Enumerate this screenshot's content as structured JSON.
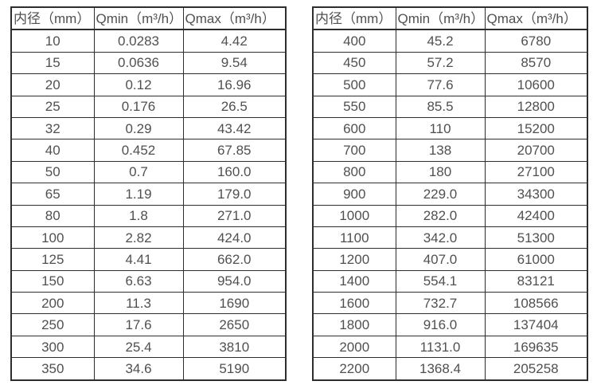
{
  "page": {
    "background_color": "#ffffff",
    "border_color": "#2e2e2e",
    "text_color": "#505050"
  },
  "tables": [
    {
      "name": "flow-table-small-diameters",
      "headers": [
        "内径（mm）",
        "Qmin（m³/h）",
        "Qmax（m³/h）"
      ],
      "rows": [
        [
          "10",
          "0.0283",
          "4.42"
        ],
        [
          "15",
          "0.0636",
          "9.54"
        ],
        [
          "20",
          "0.12",
          "16.96"
        ],
        [
          "25",
          "0.176",
          "26.5"
        ],
        [
          "32",
          "0.29",
          "43.42"
        ],
        [
          "40",
          "0.452",
          "67.85"
        ],
        [
          "50",
          "0.7",
          "160.0"
        ],
        [
          "65",
          "1.19",
          "179.0"
        ],
        [
          "80",
          "1.8",
          "271.0"
        ],
        [
          "100",
          "2.82",
          "424.0"
        ],
        [
          "125",
          "4.41",
          "662.0"
        ],
        [
          "150",
          "6.63",
          "954.0"
        ],
        [
          "200",
          "11.3",
          "1690"
        ],
        [
          "250",
          "17.6",
          "2650"
        ],
        [
          "300",
          "25.4",
          "3810"
        ],
        [
          "350",
          "34.6",
          "5190"
        ]
      ]
    },
    {
      "name": "flow-table-large-diameters",
      "headers": [
        "内径（mm）",
        "Qmin（m³/h）",
        "Qmax（m³/h）"
      ],
      "rows": [
        [
          "400",
          "45.2",
          "6780"
        ],
        [
          "450",
          "57.2",
          "8570"
        ],
        [
          "500",
          "77.6",
          "10600"
        ],
        [
          "550",
          "85.5",
          "12800"
        ],
        [
          "600",
          "110",
          "15200"
        ],
        [
          "700",
          "138",
          "20700"
        ],
        [
          "800",
          "180",
          "27100"
        ],
        [
          "900",
          "229.0",
          "34300"
        ],
        [
          "1000",
          "282.0",
          "42400"
        ],
        [
          "1100",
          "342.0",
          "51300"
        ],
        [
          "1200",
          "407.0",
          "61000"
        ],
        [
          "1400",
          "554.1",
          "83121"
        ],
        [
          "1600",
          "732.7",
          "108566"
        ],
        [
          "1800",
          "916.0",
          "137404"
        ],
        [
          "2000",
          "1131.0",
          "169635"
        ],
        [
          "2200",
          "1368.4",
          "205258"
        ]
      ]
    }
  ]
}
